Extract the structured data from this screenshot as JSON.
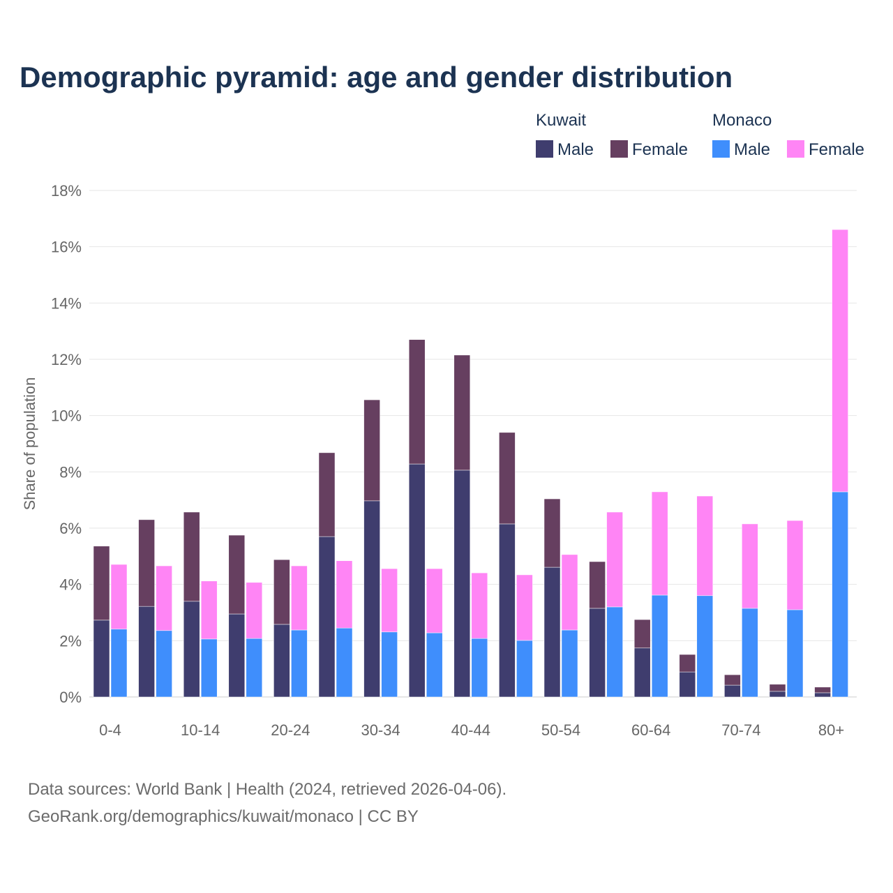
{
  "chart_data": {
    "type": "bar",
    "stacked": true,
    "title": "Demographic pyramid: age and gender distribution",
    "xlabel": "",
    "ylabel": "Share of population",
    "ylim": [
      0,
      18
    ],
    "yticks": [
      "0%",
      "2%",
      "4%",
      "6%",
      "8%",
      "10%",
      "12%",
      "14%",
      "16%",
      "18%"
    ],
    "ytick_values": [
      0,
      2,
      4,
      6,
      8,
      10,
      12,
      14,
      16,
      18
    ],
    "grid": true,
    "legend_placement": "top-right",
    "categories": [
      "0-4",
      "5-9",
      "10-14",
      "15-19",
      "20-24",
      "25-29",
      "30-34",
      "35-39",
      "40-44",
      "45-49",
      "50-54",
      "55-59",
      "60-64",
      "65-69",
      "70-74",
      "75-79",
      "80+"
    ],
    "shown_xtick_labels": [
      "0-4",
      "10-14",
      "20-24",
      "30-34",
      "40-44",
      "50-54",
      "60-64",
      "70-74",
      "80+"
    ],
    "groups": [
      {
        "name": "Kuwait",
        "series": [
          {
            "name": "Male",
            "color": "#3f3d6e",
            "values": [
              2.73,
              3.22,
              3.4,
              2.95,
              2.58,
              5.7,
              6.97,
              8.28,
              8.06,
              6.15,
              4.61,
              3.15,
              1.74,
              0.89,
              0.42,
              0.2,
              0.15
            ]
          },
          {
            "name": "Female",
            "color": "#663f60",
            "values": [
              2.63,
              3.08,
              3.17,
              2.8,
              2.3,
              2.98,
              3.59,
              4.42,
              4.09,
              3.25,
              2.43,
              1.66,
              1.01,
              0.62,
              0.37,
              0.25,
              0.2
            ]
          }
        ]
      },
      {
        "name": "Monaco",
        "series": [
          {
            "name": "Male",
            "color": "#3f8efc",
            "values": [
              2.41,
              2.36,
              2.06,
              2.08,
              2.38,
              2.45,
              2.31,
              2.28,
              2.08,
              2.01,
              2.38,
              3.2,
              3.62,
              3.6,
              3.15,
              3.1,
              7.29
            ]
          },
          {
            "name": "Female",
            "color": "#ff85f5",
            "values": [
              2.3,
              2.3,
              2.06,
              1.99,
              2.28,
              2.39,
              2.25,
              2.28,
              2.33,
              2.33,
              2.68,
              3.37,
              3.67,
              3.54,
              3.0,
              3.17,
              9.32
            ]
          }
        ]
      }
    ]
  },
  "footer": {
    "line1": "Data sources: World Bank | Health (2024, retrieved 2026-04-06).",
    "line2": "GeoRank.org/demographics/kuwait/monaco | CC BY"
  }
}
